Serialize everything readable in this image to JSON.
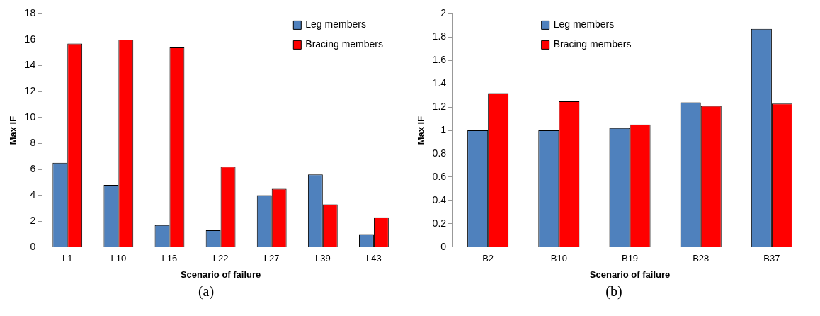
{
  "chart_data": [
    {
      "type": "bar",
      "xlabel": "Scenario of failure",
      "ylabel": "Max IF",
      "categories": [
        "L1",
        "L10",
        "L16",
        "L22",
        "L27",
        "L39",
        "L43"
      ],
      "series": [
        {
          "name": "Leg members",
          "color": "#4f81bd",
          "values": [
            6.5,
            4.8,
            1.7,
            1.3,
            4.0,
            5.6,
            1.0
          ]
        },
        {
          "name": "Bracing members",
          "color": "#ff0000",
          "values": [
            15.7,
            16.0,
            15.4,
            6.2,
            4.5,
            3.3,
            2.3
          ]
        }
      ],
      "ylim": [
        0,
        18
      ],
      "yticks": [
        0,
        2,
        4,
        6,
        8,
        10,
        12,
        14,
        16,
        18
      ],
      "grid": false,
      "legend": "top right",
      "annotations": [
        "(a)"
      ]
    },
    {
      "type": "bar",
      "xlabel": "Scenario of failure",
      "ylabel": "Max IF",
      "categories": [
        "B2",
        "B10",
        "B19",
        "B28",
        "B37"
      ],
      "series": [
        {
          "name": "Leg members",
          "color": "#4f81bd",
          "values": [
            1.0,
            1.0,
            1.02,
            1.24,
            1.87
          ]
        },
        {
          "name": "Bracing members",
          "color": "#ff0000",
          "values": [
            1.32,
            1.25,
            1.05,
            1.21,
            1.23
          ]
        }
      ],
      "ylim": [
        0,
        2
      ],
      "yticks": [
        0,
        0.2,
        0.4,
        0.6,
        0.8,
        1,
        1.2,
        1.4,
        1.6,
        1.8,
        2
      ],
      "grid": false,
      "legend": "top",
      "annotations": [
        "(b)"
      ]
    }
  ]
}
